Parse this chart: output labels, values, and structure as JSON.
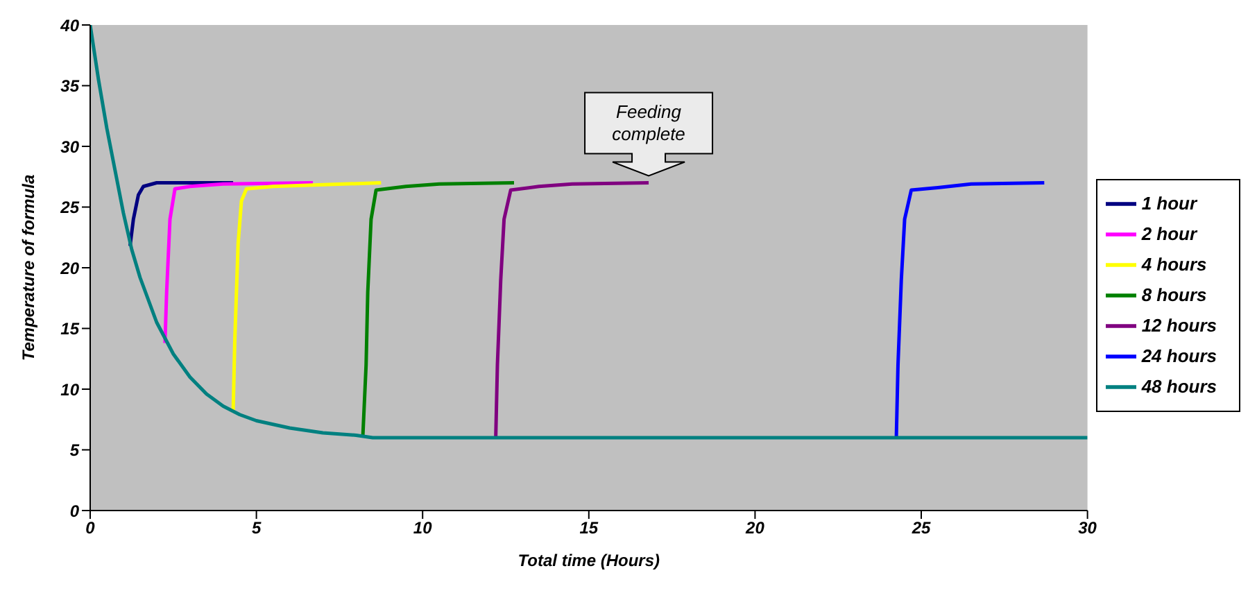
{
  "chart_data": {
    "type": "line",
    "xlabel": "Total time (Hours)",
    "ylabel": "Temperature of formula",
    "xlim": [
      0,
      30
    ],
    "ylim": [
      0,
      40
    ],
    "xticks": [
      0,
      5,
      10,
      15,
      20,
      25,
      30
    ],
    "yticks": [
      0,
      5,
      10,
      15,
      20,
      25,
      30,
      35,
      40
    ],
    "legend": "right",
    "annotations": [
      {
        "text": "Feeding complete",
        "x": 16.8,
        "y": 27
      }
    ],
    "series": [
      {
        "name": "1 hour",
        "color": "#000080",
        "x": [
          1.2,
          1.3,
          1.45,
          1.6,
          2,
          4.3
        ],
        "values": [
          21.8,
          24,
          26,
          26.7,
          27,
          27
        ]
      },
      {
        "name": "2 hour",
        "color": "#ff00ff",
        "x": [
          2.25,
          2.3,
          2.4,
          2.55,
          3,
          4,
          6.7
        ],
        "values": [
          13.8,
          18,
          24,
          26.5,
          26.7,
          26.9,
          27
        ]
      },
      {
        "name": "4 hours",
        "color": "#ffff00",
        "x": [
          4.3,
          4.35,
          4.45,
          4.55,
          4.7,
          5.5,
          8.75
        ],
        "values": [
          8.1,
          14,
          22,
          25.5,
          26.5,
          26.7,
          27
        ]
      },
      {
        "name": "8 hours",
        "color": "#008000",
        "x": [
          8.2,
          8.3,
          8.35,
          8.45,
          8.6,
          9.5,
          10.5,
          12.75
        ],
        "values": [
          6,
          12,
          18,
          24,
          26.4,
          26.7,
          26.9,
          27
        ]
      },
      {
        "name": "12 hours",
        "color": "#800080",
        "x": [
          12.2,
          12.25,
          12.35,
          12.45,
          12.65,
          13.5,
          14.5,
          16.8
        ],
        "values": [
          6,
          12,
          19,
          24,
          26.4,
          26.7,
          26.9,
          27
        ]
      },
      {
        "name": "24 hours",
        "color": "#0000ff",
        "x": [
          24.25,
          24.3,
          24.4,
          24.5,
          24.7,
          25.5,
          26.5,
          28.7
        ],
        "values": [
          6,
          12,
          19,
          24,
          26.4,
          26.6,
          26.9,
          27
        ]
      },
      {
        "name": "48 hours",
        "color": "#008080",
        "x": [
          0,
          0.25,
          0.5,
          0.75,
          1,
          1.25,
          1.5,
          2,
          2.5,
          3,
          3.5,
          4,
          4.5,
          5,
          6,
          7,
          8,
          8.5,
          30
        ],
        "values": [
          40,
          35.5,
          31.5,
          28,
          24.5,
          21.5,
          19.2,
          15.5,
          12.9,
          11,
          9.6,
          8.6,
          7.9,
          7.4,
          6.8,
          6.4,
          6.2,
          6,
          6
        ]
      }
    ]
  }
}
